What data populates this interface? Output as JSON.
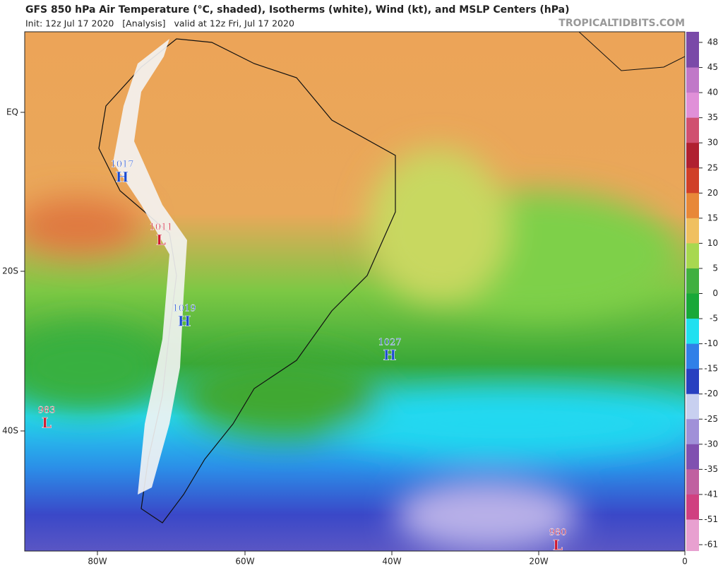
{
  "header": {
    "title": "GFS 850 hPa Air Temperature (°C, shaded), Isotherms (white), Wind (kt), and MSLP Centers (hPa)",
    "subtitle": "Init: 12z Jul 17 2020   [Analysis]   valid at 12z Fri, Jul 17 2020",
    "credit": "TROPICALTIDBITS.COM"
  },
  "map": {
    "lon_labels": [
      "80W",
      "60W",
      "40W",
      "20W",
      "0"
    ],
    "lat_labels": [
      "EQ",
      "20S",
      "40S"
    ],
    "centers": [
      {
        "pressure": "1017",
        "type": "H"
      },
      {
        "pressure": "1011",
        "type": "L"
      },
      {
        "pressure": "1019",
        "type": "H"
      },
      {
        "pressure": "1027",
        "type": "H"
      },
      {
        "pressure": "983",
        "type": "L"
      },
      {
        "pressure": "980",
        "type": "L"
      }
    ]
  },
  "colorbar": {
    "ticks": [
      48,
      45,
      40,
      35,
      30,
      25,
      20,
      15,
      10,
      5,
      0,
      -5,
      -10,
      -15,
      -20,
      -25,
      -30,
      -35,
      -41,
      -51,
      -61
    ],
    "colors": [
      "#7a4aa8",
      "#c078c8",
      "#e090d8",
      "#d05070",
      "#b02030",
      "#d04028",
      "#e88838",
      "#f0c060",
      "#a8d850",
      "#40b040",
      "#18a838",
      "#20e0f0",
      "#3080e8",
      "#2840c0",
      "#c8d0f0",
      "#a090d8",
      "#8050b0",
      "#c060a0",
      "#d04080",
      "#e8a0d0"
    ]
  }
}
